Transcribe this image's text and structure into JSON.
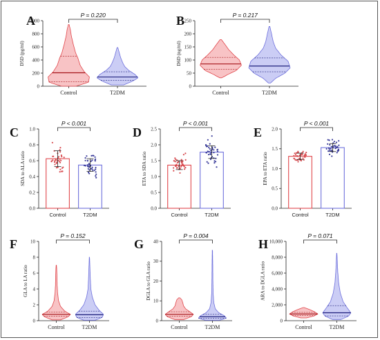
{
  "chart_data": [
    {
      "panel": "A",
      "type": "violin",
      "ylabel": "D5D (pg/ml)",
      "ylim": [
        0,
        1000
      ],
      "yticks": [
        0,
        200,
        400,
        600,
        800,
        1000
      ],
      "ytick_labels": [
        "0",
        "200",
        "400",
        "600",
        "800",
        "1,000"
      ],
      "categories": [
        "Control",
        "T2DM"
      ],
      "p_label": "P = 0.220",
      "series": [
        {
          "median": 205,
          "q1": 70,
          "q3": 460,
          "min": 0,
          "max": 940,
          "profile": [
            [
              0,
              0.35
            ],
            [
              60,
              0.95
            ],
            [
              140,
              1.0
            ],
            [
              220,
              0.75
            ],
            [
              320,
              0.55
            ],
            [
              420,
              0.45
            ],
            [
              520,
              0.32
            ],
            [
              640,
              0.22
            ],
            [
              760,
              0.13
            ],
            [
              860,
              0.08
            ],
            [
              940,
              0.02
            ]
          ]
        },
        {
          "median": 140,
          "q1": 90,
          "q3": 220,
          "min": 20,
          "max": 590,
          "profile": [
            [
              20,
              0.3
            ],
            [
              80,
              0.75
            ],
            [
              130,
              1.0
            ],
            [
              180,
              0.85
            ],
            [
              240,
              0.55
            ],
            [
              300,
              0.35
            ],
            [
              360,
              0.25
            ],
            [
              440,
              0.15
            ],
            [
              520,
              0.08
            ],
            [
              590,
              0.02
            ]
          ]
        }
      ]
    },
    {
      "panel": "B",
      "type": "violin",
      "ylabel": "D6D (ng/ml)",
      "ylim": [
        0,
        250
      ],
      "yticks": [
        0,
        50,
        100,
        150,
        200,
        250
      ],
      "ytick_labels": [
        "0",
        "50",
        "100",
        "150",
        "200",
        "250"
      ],
      "categories": [
        "Control",
        "T2DM"
      ],
      "p_label": "P = 0.217",
      "series": [
        {
          "median": 85,
          "q1": 65,
          "q3": 110,
          "min": 32,
          "max": 178,
          "profile": [
            [
              32,
              0.05
            ],
            [
              45,
              0.35
            ],
            [
              60,
              0.75
            ],
            [
              80,
              1.0
            ],
            [
              100,
              0.9
            ],
            [
              120,
              0.62
            ],
            [
              140,
              0.38
            ],
            [
              160,
              0.2
            ],
            [
              178,
              0.03
            ]
          ]
        },
        {
          "median": 77,
          "q1": 55,
          "q3": 108,
          "min": 12,
          "max": 228,
          "profile": [
            [
              12,
              0.05
            ],
            [
              30,
              0.3
            ],
            [
              50,
              0.75
            ],
            [
              70,
              1.0
            ],
            [
              95,
              0.9
            ],
            [
              120,
              0.55
            ],
            [
              145,
              0.3
            ],
            [
              170,
              0.18
            ],
            [
              200,
              0.1
            ],
            [
              228,
              0.02
            ]
          ]
        }
      ]
    },
    {
      "panel": "C",
      "type": "bar",
      "ylabel": "SDA to ALA ratio",
      "ylim": [
        0,
        1.0
      ],
      "yticks": [
        0,
        0.2,
        0.4,
        0.6,
        0.8,
        1.0
      ],
      "ytick_labels": [
        "0.0",
        "0.2",
        "0.4",
        "0.6",
        "0.8",
        "1.0"
      ],
      "categories": [
        "Control",
        "T2DM"
      ],
      "p_label": "P < 0.001",
      "series": [
        {
          "mean": 0.625,
          "sd": 0.1,
          "pmin": 0.43,
          "pmax": 0.85
        },
        {
          "mean": 0.545,
          "sd": 0.08,
          "pmin": 0.38,
          "pmax": 0.78
        }
      ]
    },
    {
      "panel": "D",
      "type": "bar",
      "ylabel": "ETA to SDA ratio",
      "ylim": [
        0,
        2.5
      ],
      "yticks": [
        0,
        0.5,
        1.0,
        1.5,
        2.0,
        2.5
      ],
      "ytick_labels": [
        "0.0",
        "0.5",
        "1.0",
        "1.5",
        "2.0",
        "2.5"
      ],
      "categories": [
        "Control",
        "T2DM"
      ],
      "p_label": "P < 0.001",
      "series": [
        {
          "mean": 1.36,
          "sd": 0.14,
          "pmin": 1.1,
          "pmax": 1.75
        },
        {
          "mean": 1.77,
          "sd": 0.2,
          "pmin": 1.3,
          "pmax": 2.3
        }
      ]
    },
    {
      "panel": "E",
      "type": "bar",
      "ylabel": "EPA to ETA ratio",
      "ylim": [
        0,
        2.0
      ],
      "yticks": [
        0,
        0.5,
        1.0,
        1.5,
        2.0
      ],
      "ytick_labels": [
        "0.0",
        "0.5",
        "1.0",
        "1.5",
        "2.0"
      ],
      "categories": [
        "Control",
        "T2DM"
      ],
      "p_label": "P < 0.001",
      "series": [
        {
          "mean": 1.31,
          "sd": 0.08,
          "pmin": 1.15,
          "pmax": 1.48
        },
        {
          "mean": 1.53,
          "sd": 0.1,
          "pmin": 1.3,
          "pmax": 1.73
        }
      ]
    },
    {
      "panel": "F",
      "type": "violin",
      "ylabel": "GLA to LA ratio",
      "ylim": [
        0,
        10
      ],
      "yticks": [
        0,
        2,
        4,
        6,
        8,
        10
      ],
      "ytick_labels": [
        "0",
        "2",
        "4",
        "6",
        "8",
        "10"
      ],
      "categories": [
        "Control",
        "T2DM"
      ],
      "p_label": "P = 0.152",
      "series": [
        {
          "median": 0.8,
          "q1": 0.55,
          "q3": 1.1,
          "min": 0.1,
          "max": 7.0,
          "profile": [
            [
              0.1,
              0.3
            ],
            [
              0.5,
              0.85
            ],
            [
              0.8,
              1.0
            ],
            [
              1.2,
              0.6
            ],
            [
              1.8,
              0.3
            ],
            [
              2.5,
              0.16
            ],
            [
              3.5,
              0.09
            ],
            [
              4.5,
              0.06
            ],
            [
              5.5,
              0.05
            ],
            [
              6.5,
              0.03
            ],
            [
              7.0,
              0.01
            ]
          ]
        },
        {
          "median": 0.75,
          "q1": 0.4,
          "q3": 1.2,
          "min": 0.05,
          "max": 8.0,
          "profile": [
            [
              0.05,
              0.4
            ],
            [
              0.4,
              0.9
            ],
            [
              0.8,
              1.0
            ],
            [
              1.3,
              0.7
            ],
            [
              2.0,
              0.4
            ],
            [
              3.0,
              0.2
            ],
            [
              4.0,
              0.1
            ],
            [
              5.5,
              0.06
            ],
            [
              7.0,
              0.03
            ],
            [
              8.0,
              0.01
            ]
          ]
        }
      ]
    },
    {
      "panel": "G",
      "type": "violin",
      "ylabel": "DGLA to GLA ratio",
      "ylim": [
        0,
        40
      ],
      "yticks": [
        0,
        10,
        20,
        30,
        40
      ],
      "ytick_labels": [
        "0",
        "10",
        "20",
        "30",
        "40"
      ],
      "categories": [
        "Control",
        "T2DM"
      ],
      "p_label": "P = 0.004",
      "series": [
        {
          "median": 3.2,
          "q1": 2.2,
          "q3": 4.5,
          "min": 0.5,
          "max": 11.5,
          "profile": [
            [
              0.5,
              0.3
            ],
            [
              2.0,
              0.85
            ],
            [
              3.2,
              1.0
            ],
            [
              4.5,
              0.75
            ],
            [
              6.0,
              0.45
            ],
            [
              7.5,
              0.3
            ],
            [
              9.0,
              0.25
            ],
            [
              10.5,
              0.18
            ],
            [
              11.5,
              0.05
            ]
          ]
        },
        {
          "median": 2.0,
          "q1": 1.2,
          "q3": 3.2,
          "min": 0.2,
          "max": 35.5,
          "profile": [
            [
              0.2,
              0.5
            ],
            [
              1.2,
              1.0
            ],
            [
              2.5,
              0.85
            ],
            [
              4.0,
              0.45
            ],
            [
              6.0,
              0.2
            ],
            [
              9.0,
              0.1
            ],
            [
              14.0,
              0.05
            ],
            [
              20.0,
              0.035
            ],
            [
              28.0,
              0.025
            ],
            [
              35.5,
              0.01
            ]
          ]
        }
      ]
    },
    {
      "panel": "H",
      "type": "violin",
      "ylabel": "ARA to DGLA ratio",
      "ylim": [
        0,
        10000
      ],
      "yticks": [
        0,
        2000,
        4000,
        6000,
        8000,
        10000
      ],
      "ytick_labels": [
        "0",
        "2,000",
        "4,000",
        "6,000",
        "8,000",
        "10,000"
      ],
      "categories": [
        "Control",
        "T2DM"
      ],
      "p_label": "P = 0.071",
      "series": [
        {
          "median": 850,
          "q1": 650,
          "q3": 1050,
          "min": 350,
          "max": 1650,
          "profile": [
            [
              350,
              0.2
            ],
            [
              600,
              0.75
            ],
            [
              850,
              1.0
            ],
            [
              1100,
              0.8
            ],
            [
              1350,
              0.5
            ],
            [
              1650,
              0.05
            ]
          ]
        },
        {
          "median": 1000,
          "q1": 600,
          "q3": 1900,
          "min": 150,
          "max": 8500,
          "profile": [
            [
              150,
              0.3
            ],
            [
              600,
              0.85
            ],
            [
              1000,
              1.0
            ],
            [
              1600,
              0.75
            ],
            [
              2400,
              0.45
            ],
            [
              3500,
              0.25
            ],
            [
              4800,
              0.13
            ],
            [
              6200,
              0.07
            ],
            [
              7400,
              0.04
            ],
            [
              8500,
              0.01
            ]
          ]
        }
      ]
    }
  ],
  "colors": {
    "control_line": "#e0454a",
    "control_fill": "#f7b9bb",
    "t2dm_line": "#6d6fdc",
    "t2dm_fill": "#c2c4f3",
    "control_dot": "#d84b4f",
    "t2dm_dot": "#3a3c9a"
  }
}
